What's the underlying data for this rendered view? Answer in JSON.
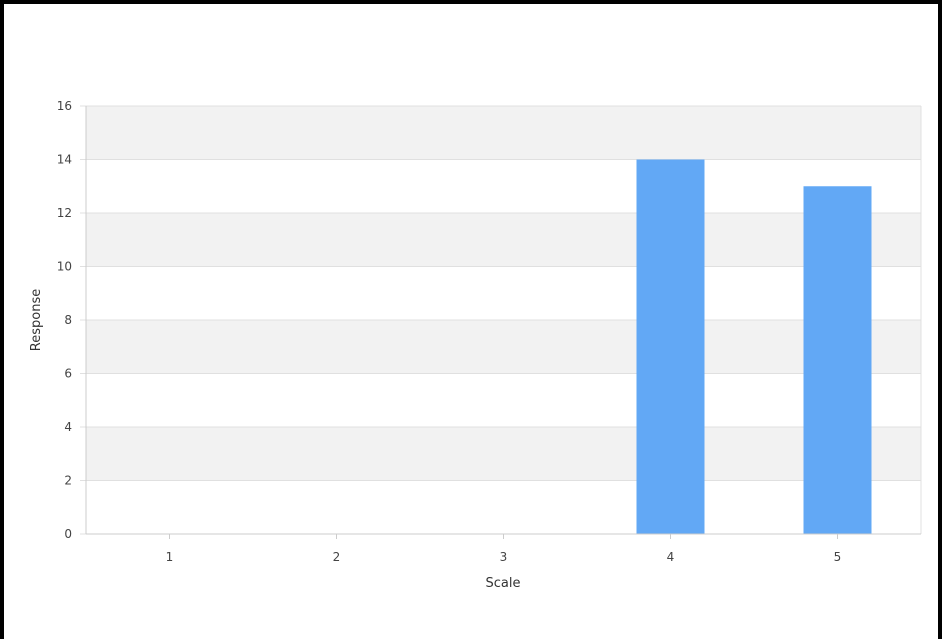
{
  "chart_data": {
    "type": "bar",
    "title": "",
    "xlabel": "Scale",
    "ylabel": "Response",
    "categories": [
      "1",
      "2",
      "3",
      "4",
      "5"
    ],
    "values": [
      0,
      0,
      0,
      14,
      13
    ],
    "ylim": [
      0,
      16
    ],
    "yticks": [
      0,
      2,
      4,
      6,
      8,
      10,
      12,
      14,
      16
    ],
    "grid": true,
    "legend": "none",
    "colors": {
      "bar": "#62a8f5",
      "band": "#f2f2f2",
      "gridline": "#e0e0e0",
      "axis": "#cccccc"
    }
  }
}
